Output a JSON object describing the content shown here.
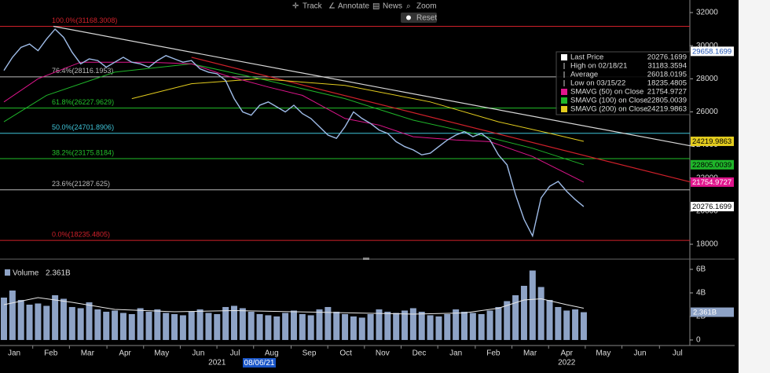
{
  "toolbar": [
    "Track",
    "Annotate",
    "News",
    "Zoom",
    "Reset"
  ],
  "cursor_date": "08/06/21",
  "chart_data": [
    {
      "type": "line",
      "xlim": [
        0,
        81
      ],
      "ylim": [
        17100,
        32760
      ],
      "yticks": [
        18000,
        20000,
        22000,
        24000,
        26000,
        28000,
        30000,
        32000
      ],
      "xticks": [
        {
          "value": 1.2,
          "label": "Jan"
        },
        {
          "value": 5.5,
          "label": "Feb"
        },
        {
          "value": 9.8,
          "label": "Mar"
        },
        {
          "value": 14.2,
          "label": "Apr"
        },
        {
          "value": 18.5,
          "label": "May"
        },
        {
          "value": 22.8,
          "label": "Jun"
        },
        {
          "value": 27.1,
          "label": "Jul"
        },
        {
          "value": 31.4,
          "label": "Aug"
        },
        {
          "value": 35.8,
          "label": "Sep"
        },
        {
          "value": 40.1,
          "label": "Oct"
        },
        {
          "value": 44.4,
          "label": "Nov"
        },
        {
          "value": 48.7,
          "label": "Dec"
        },
        {
          "value": 53.0,
          "label": "Jan"
        },
        {
          "value": 57.4,
          "label": "Feb"
        },
        {
          "value": 61.7,
          "label": "Mar"
        },
        {
          "value": 66.0,
          "label": "Apr"
        },
        {
          "value": 70.3,
          "label": "May"
        },
        {
          "value": 74.6,
          "label": "Jun"
        },
        {
          "value": 79.0,
          "label": "Jul"
        }
      ],
      "year_labels": [
        {
          "value": 25.0,
          "label": "2021"
        },
        {
          "value": 66.0,
          "label": "2022"
        }
      ],
      "series": [
        {
          "name": "Last Price",
          "color": "#9fbce8",
          "x": [
            0,
            1,
            2,
            3,
            4,
            5,
            6,
            7,
            8,
            9,
            10,
            11,
            12,
            13,
            14,
            15,
            16,
            17,
            18,
            19,
            20,
            21,
            22,
            23,
            24,
            25,
            26,
            27,
            28,
            29,
            30,
            31,
            32,
            33,
            34,
            35,
            36,
            37,
            38,
            39,
            40,
            41,
            42,
            43,
            44,
            45,
            46,
            47,
            48,
            49,
            50,
            51,
            52,
            53,
            54,
            55,
            56,
            57,
            58,
            59,
            60,
            61,
            62,
            63,
            64,
            65,
            66,
            67,
            68
          ],
          "values": [
            28500,
            29300,
            29900,
            30100,
            29700,
            30400,
            31000,
            30500,
            29600,
            28900,
            29200,
            29100,
            28700,
            29000,
            29300,
            29000,
            28900,
            28700,
            29100,
            29400,
            29200,
            29000,
            29100,
            28600,
            28400,
            28300,
            27900,
            26800,
            26000,
            25800,
            26400,
            26600,
            26300,
            26000,
            26400,
            25900,
            25600,
            25100,
            24600,
            24400,
            25100,
            26000,
            25600,
            25300,
            24900,
            24700,
            24200,
            23900,
            23700,
            23400,
            23500,
            23900,
            24300,
            24600,
            24800,
            24500,
            24700,
            24300,
            23400,
            22800,
            21000,
            19500,
            18500,
            20800,
            21500,
            21800,
            21200,
            20700,
            20276.1699
          ]
        },
        {
          "name": "SMAVG (50)  on Close",
          "color": "#e0158d",
          "x": [
            0,
            4,
            9,
            17,
            22,
            26,
            31,
            35,
            40,
            44,
            48,
            53,
            57,
            62,
            68
          ],
          "values": [
            26600,
            28000,
            29000,
            29000,
            28900,
            28200,
            27500,
            27000,
            25600,
            25200,
            24500,
            24300,
            24200,
            23300,
            21754.9727
          ]
        },
        {
          "name": "SMAVG (100)  on Close",
          "color": "#1fb52a",
          "x": [
            0,
            5,
            13,
            22,
            30,
            40,
            48,
            55,
            62,
            68
          ],
          "values": [
            25400,
            27000,
            28400,
            28900,
            28000,
            26800,
            25500,
            24700,
            23800,
            22805.0039
          ]
        },
        {
          "name": "SMAVG (200)  on Close",
          "color": "#e3cc1e",
          "x": [
            15,
            22,
            30,
            40,
            50,
            58,
            64,
            68
          ],
          "values": [
            26800,
            27700,
            28000,
            27600,
            26600,
            25400,
            24700,
            24219.9863
          ]
        }
      ],
      "trendlines": [
        {
          "color": "#d8d8d8",
          "x": [
            5.8,
            81
          ],
          "values": [
            31168.3008,
            23900
          ]
        },
        {
          "color": "#d0202a",
          "x": [
            22,
            81
          ],
          "values": [
            29300,
            21700
          ]
        }
      ],
      "fib_levels": [
        {
          "label": "100.0%(31168.3008)",
          "value": 31168.3008,
          "color": "#d0202a"
        },
        {
          "label": "76.4%(28116.1953)",
          "value": 28116.1953,
          "color": "#bbbbbb"
        },
        {
          "label": "61.8%(26227.9629)",
          "value": 26227.9629,
          "color": "#22c02a"
        },
        {
          "label": "50.0%(24701.8906)",
          "value": 24701.8906,
          "color": "#3fc4d8"
        },
        {
          "label": "38.2%(23175.8184)",
          "value": 23175.8184,
          "color": "#22c02a"
        },
        {
          "label": "23.6%(21287.625)",
          "value": 21287.625,
          "color": "#bbbbbb"
        },
        {
          "label": "0.0%(18235.4805)",
          "value": 18235.4805,
          "color": "#d0202a"
        }
      ],
      "legend": [
        {
          "label": "Last Price",
          "value": 20276.1699,
          "color": "#ffffff"
        },
        {
          "label": "High on 02/18/21",
          "value": 31183.3594,
          "color": null
        },
        {
          "label": "Average",
          "value": 26018.0195,
          "color": null
        },
        {
          "label": "Low on 03/15/22",
          "value": 18235.4805,
          "color": null
        },
        {
          "label": "SMAVG (50)  on Close",
          "value": 21754.9727,
          "color": "#e0158d"
        },
        {
          "label": "SMAVG (100)  on Close",
          "value": 22805.0039,
          "color": "#1fb52a"
        },
        {
          "label": "SMAVG (200)  on Close",
          "value": 24219.9863,
          "color": "#e3cc1e"
        }
      ],
      "axis_markers": [
        {
          "value": 29658.1699,
          "bg": "#ffffff",
          "fg": "#1a4fb0"
        },
        {
          "value": 24219.9863,
          "bg": "#e3cc1e",
          "fg": "#000000"
        },
        {
          "value": 22805.0039,
          "bg": "#1fb52a",
          "fg": "#000000"
        },
        {
          "value": 21754.9727,
          "bg": "#e0158d",
          "fg": "#ffffff"
        },
        {
          "value": 20276.1699,
          "bg": "#ffffff",
          "fg": "#000000"
        }
      ]
    },
    {
      "type": "bar",
      "legend_label": "Volume",
      "last": {
        "value": 2.361,
        "label": "2.361B"
      },
      "xlim": [
        0,
        81
      ],
      "ylim": [
        -0.47,
        6.4
      ],
      "yticks": [
        0,
        {
          "value": 2,
          "label": "2B"
        },
        {
          "value": 4,
          "label": "4B"
        },
        {
          "value": 6,
          "label": "6B"
        }
      ],
      "color": "#8ea3c6",
      "values": [
        3.6,
        4.2,
        3.4,
        3.0,
        3.1,
        2.9,
        3.8,
        3.5,
        2.8,
        2.7,
        3.2,
        2.6,
        2.4,
        2.5,
        2.3,
        2.2,
        2.7,
        2.4,
        2.6,
        2.3,
        2.2,
        2.1,
        2.4,
        2.6,
        2.3,
        2.2,
        2.8,
        2.9,
        2.7,
        2.4,
        2.2,
        2.1,
        2.0,
        2.3,
        2.5,
        2.2,
        2.1,
        2.6,
        2.8,
        2.4,
        2.2,
        2.0,
        1.9,
        2.2,
        2.6,
        2.4,
        2.3,
        2.5,
        2.7,
        2.4,
        2.1,
        2.0,
        2.2,
        2.6,
        2.4,
        2.3,
        2.2,
        2.5,
        2.8,
        3.3,
        3.8,
        4.6,
        5.9,
        4.5,
        3.4,
        2.8,
        2.5,
        2.6,
        2.361
      ],
      "avg": {
        "color": "#e8e8e8",
        "x": [
          0,
          4,
          8,
          13,
          20,
          27,
          34,
          41,
          48,
          54,
          58,
          61,
          63,
          66,
          68
        ],
        "values": [
          3.0,
          3.6,
          3.2,
          2.6,
          2.4,
          2.5,
          2.4,
          2.3,
          2.2,
          2.3,
          2.7,
          3.4,
          3.5,
          3.0,
          2.7
        ]
      }
    }
  ]
}
